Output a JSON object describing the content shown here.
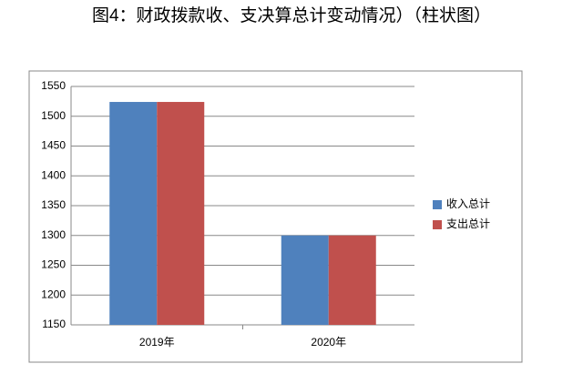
{
  "chart_data": {
    "type": "bar",
    "title": "图4：财政拨款收、支决算总计变动情况）（柱状图）",
    "categories": [
      "2019年",
      "2020年"
    ],
    "series": [
      {
        "name": "收入总计",
        "color": "#4f81bd",
        "values": [
          1524,
          1300
        ]
      },
      {
        "name": "支出总计",
        "color": "#c0504d",
        "values": [
          1524,
          1300
        ]
      }
    ],
    "ylim": [
      1150,
      1550
    ],
    "yticks": [
      1150,
      1200,
      1250,
      1300,
      1350,
      1400,
      1450,
      1500,
      1550
    ],
    "grid": true,
    "legend": "right"
  }
}
